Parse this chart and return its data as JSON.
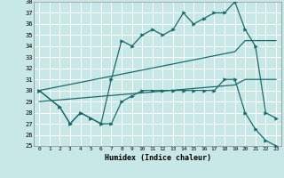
{
  "xlabel": "Humidex (Indice chaleur)",
  "xlim": [
    -0.5,
    23.5
  ],
  "ylim": [
    25,
    38
  ],
  "yticks": [
    25,
    26,
    27,
    28,
    29,
    30,
    31,
    32,
    33,
    34,
    35,
    36,
    37,
    38
  ],
  "xticks": [
    0,
    1,
    2,
    3,
    4,
    5,
    6,
    7,
    8,
    9,
    10,
    11,
    12,
    13,
    14,
    15,
    16,
    17,
    18,
    19,
    20,
    21,
    22,
    23
  ],
  "bg_color": "#c8e8e8",
  "line_color": "#1a6b6b",
  "grid_color": "#ffffff",
  "line1_x": [
    0,
    2,
    3,
    4,
    5,
    6,
    7,
    8,
    9,
    10,
    11,
    12,
    13,
    14,
    15,
    16,
    17,
    18,
    19,
    20,
    21,
    22,
    23
  ],
  "line1_y": [
    30.0,
    28.5,
    27.0,
    28.0,
    27.5,
    27.0,
    31.0,
    34.5,
    34.0,
    35.0,
    35.5,
    35.0,
    35.5,
    37.0,
    36.0,
    36.5,
    37.0,
    37.0,
    38.0,
    35.5,
    34.0,
    28.0,
    27.5
  ],
  "line2_x": [
    0,
    2,
    3,
    4,
    5,
    6,
    7,
    8,
    9,
    10,
    11,
    12,
    13,
    14,
    15,
    16,
    17,
    18,
    19,
    20,
    21,
    22,
    23
  ],
  "line2_y": [
    30.0,
    28.5,
    27.0,
    28.0,
    27.5,
    27.0,
    27.0,
    29.0,
    29.5,
    30.0,
    30.0,
    30.0,
    30.0,
    30.0,
    30.0,
    30.0,
    30.0,
    31.0,
    31.0,
    28.0,
    26.5,
    25.5,
    25.0
  ],
  "line3_x": [
    0,
    19,
    20,
    21,
    23
  ],
  "line3_y": [
    30.0,
    33.5,
    34.5,
    34.5,
    34.5
  ],
  "line4_x": [
    0,
    19,
    20,
    21,
    23
  ],
  "line4_y": [
    29.0,
    30.5,
    31.0,
    31.0,
    31.0
  ]
}
